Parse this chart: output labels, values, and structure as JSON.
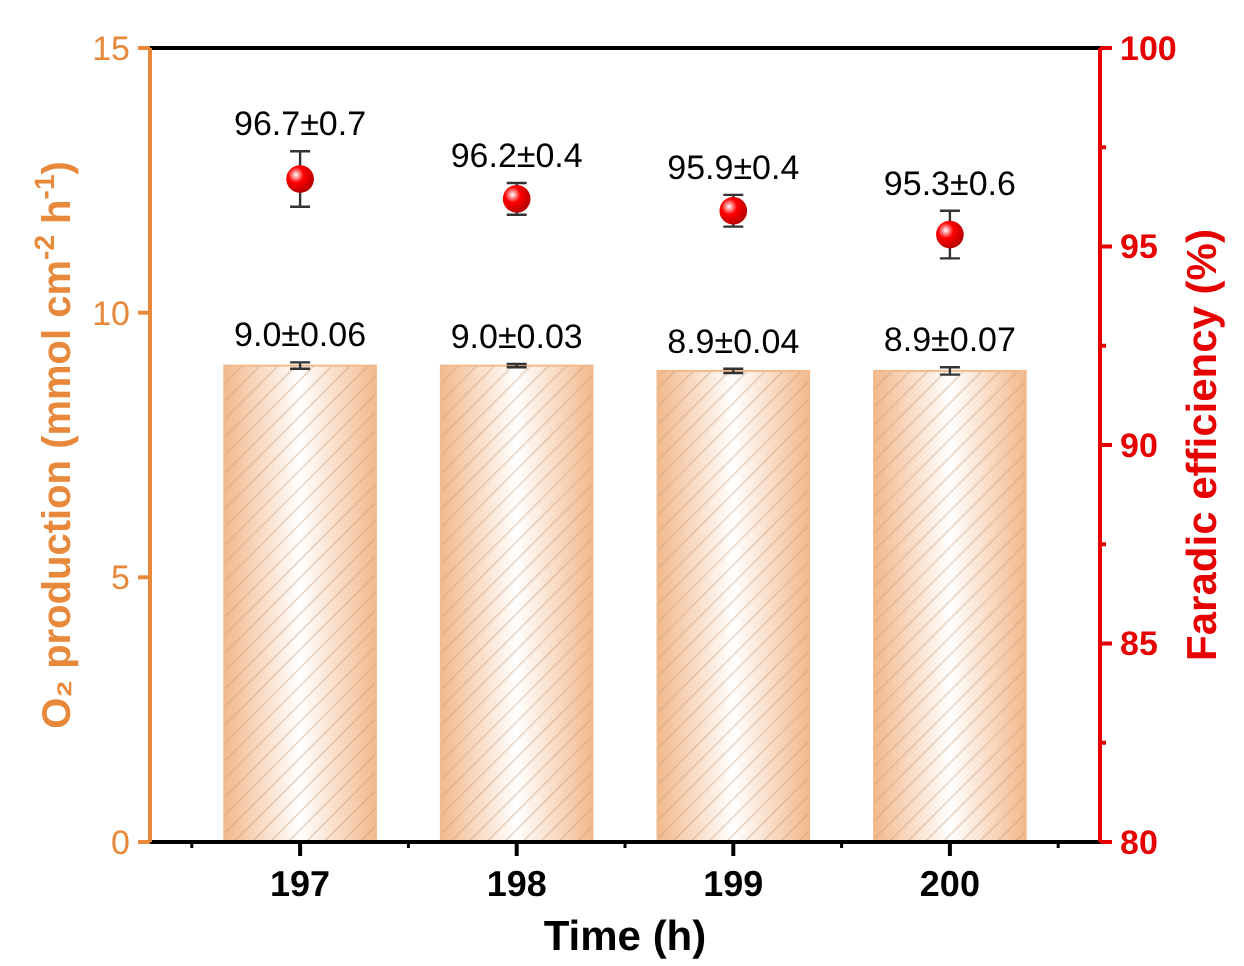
{
  "chart_data": {
    "type": "bar",
    "xlabel": "Time (h)",
    "ylabel": "O₂ production (mmol cm$^{-2}$ h$^{-1}$)",
    "y2label": "Faradic efficiency (%)",
    "categories": [
      "197",
      "198",
      "199",
      "200"
    ],
    "series": [
      {
        "type": "bar",
        "color": "#f2b98c",
        "values": [
          9.0,
          9.0,
          8.9,
          8.9
        ],
        "errors": [
          0.06,
          0.03,
          0.04,
          0.07
        ],
        "value_labels": [
          "9.0±0.06",
          "9.0±0.03",
          "8.9±0.04",
          "8.9±0.07"
        ]
      },
      {
        "type": "scatter",
        "axis": "y2",
        "color": "#ff0000",
        "marker": "circle",
        "values": [
          96.7,
          96.2,
          95.9,
          95.3
        ],
        "errors": [
          0.7,
          0.4,
          0.4,
          0.6
        ],
        "value_labels": [
          "96.7±0.7",
          "96.2±0.4",
          "95.9±0.4",
          "95.3±0.6"
        ]
      }
    ],
    "ylim": [
      0,
      15
    ],
    "yticks": [
      0,
      5,
      10,
      15
    ],
    "y2lim": [
      80,
      100
    ],
    "y2ticks": [
      80,
      {
        "value": 82.5,
        "label": null
      },
      85,
      {
        "value": 87.5,
        "label": null
      },
      90,
      {
        "value": 92.5,
        "label": null
      },
      95,
      {
        "value": 97.5,
        "label": null
      },
      100
    ]
  }
}
